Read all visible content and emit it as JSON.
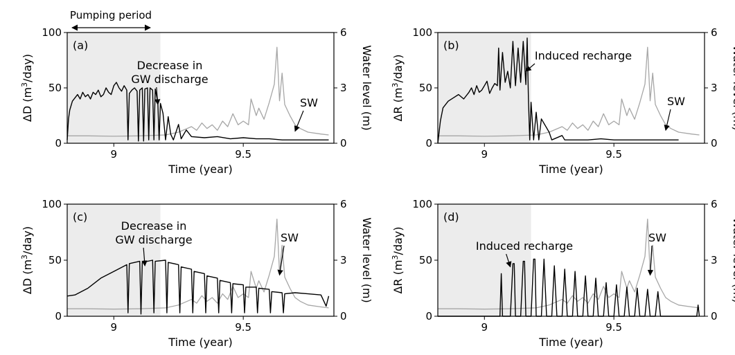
{
  "header": {
    "pumping_label": "Pumping period"
  },
  "colors": {
    "shade": "#ececec",
    "response_line": "#000000",
    "surface_water_line": "#a6a6a6",
    "frame": "#000000"
  },
  "chart_data": [
    {
      "type": "line",
      "panel_label": "(a)",
      "xlabel": "Time (year)",
      "ylabel": "ΔD (m³/day)",
      "ylabel_prefix": "ΔD (m",
      "ylabel_sup": "3",
      "ylabel_suffix": "/day)",
      "ylabel_right": "Water level (m)",
      "xlim": [
        8.82,
        9.85
      ],
      "ylim": [
        0,
        100
      ],
      "ylim_right": [
        0,
        6
      ],
      "xticks": [
        9,
        9.5
      ],
      "xtick_labels": [
        "9",
        "9.5"
      ],
      "yticks": [
        0,
        50,
        100
      ],
      "ytick_labels": [
        "0",
        "50",
        "100"
      ],
      "yticks_right": [
        0,
        3,
        6
      ],
      "ytick_labels_right": [
        "0",
        "3",
        "6"
      ],
      "shaded_period": [
        8.82,
        9.18
      ],
      "annotations": [
        {
          "lines": [
            "Decrease in",
            "GW discharge"
          ],
          "arrow_to": [
            9.17,
            35
          ]
        },
        {
          "lines": [
            "SW"
          ],
          "arrow_to": [
            9.7,
            0.65
          ]
        }
      ],
      "series": [
        {
          "axis": "left",
          "x": [
            8.82,
            8.825,
            8.83,
            8.84,
            8.85,
            8.86,
            8.87,
            8.88,
            8.89,
            8.9,
            8.91,
            8.92,
            8.93,
            8.94,
            8.95,
            8.96,
            8.97,
            8.98,
            8.99,
            9.0,
            9.01,
            9.02,
            9.03,
            9.04,
            9.05,
            9.055,
            9.06,
            9.07,
            9.08,
            9.09,
            9.095,
            9.1,
            9.11,
            9.115,
            9.12,
            9.13,
            9.135,
            9.14,
            9.15,
            9.155,
            9.16,
            9.17,
            9.175,
            9.18,
            9.19,
            9.2,
            9.21,
            9.22,
            9.23,
            9.25,
            9.26,
            9.28,
            9.3,
            9.35,
            9.4,
            9.45,
            9.5,
            9.55,
            9.6,
            9.65,
            9.7,
            9.75,
            9.8,
            9.83
          ],
          "values": [
            3,
            22,
            30,
            38,
            41,
            44,
            40,
            46,
            42,
            44,
            40,
            46,
            44,
            48,
            42,
            44,
            50,
            46,
            44,
            52,
            55,
            50,
            47,
            52,
            48,
            3,
            45,
            48,
            50,
            47,
            2,
            48,
            50,
            2,
            49,
            50,
            3,
            50,
            48,
            3,
            49,
            37,
            3,
            36,
            27,
            3,
            24,
            8,
            3,
            17,
            4,
            12,
            6,
            5,
            6,
            4,
            5,
            4,
            4,
            3,
            3,
            3,
            3,
            3
          ]
        },
        {
          "axis": "right",
          "x": [
            8.82,
            8.9,
            9.0,
            9.1,
            9.2,
            9.25,
            9.3,
            9.32,
            9.34,
            9.36,
            9.38,
            9.4,
            9.42,
            9.44,
            9.46,
            9.48,
            9.5,
            9.52,
            9.53,
            9.55,
            9.56,
            9.58,
            9.6,
            9.61,
            9.62,
            9.63,
            9.64,
            9.65,
            9.66,
            9.68,
            9.7,
            9.72,
            9.75,
            9.8,
            9.83
          ],
          "values": [
            0.4,
            0.4,
            0.38,
            0.4,
            0.45,
            0.6,
            0.9,
            0.7,
            1.1,
            0.8,
            1.0,
            0.7,
            1.2,
            0.9,
            1.6,
            1.0,
            1.2,
            1.0,
            2.4,
            1.5,
            1.9,
            1.3,
            2.2,
            2.7,
            3.2,
            5.2,
            2.3,
            3.8,
            2.1,
            1.5,
            1.0,
            0.8,
            0.6,
            0.5,
            0.45
          ]
        }
      ]
    },
    {
      "type": "line",
      "panel_label": "(b)",
      "xlabel": "Time (year)",
      "ylabel": "ΔR (m³/day)",
      "ylabel_prefix": "ΔR (m",
      "ylabel_sup": "3",
      "ylabel_suffix": "/day)",
      "ylabel_right": "Water level (m)",
      "xlim": [
        8.82,
        9.85
      ],
      "ylim": [
        0,
        100
      ],
      "ylim_right": [
        0,
        6
      ],
      "xticks": [
        9,
        9.5
      ],
      "xtick_labels": [
        "9",
        "9.5"
      ],
      "yticks": [
        0,
        50,
        100
      ],
      "ytick_labels": [
        "0",
        "50",
        "100"
      ],
      "yticks_right": [
        0,
        3,
        6
      ],
      "ytick_labels_right": [
        "0",
        "3",
        "6"
      ],
      "shaded_period": [
        8.82,
        9.18
      ],
      "annotations": [
        {
          "lines": [
            "Induced recharge"
          ],
          "arrow_to": [
            9.16,
            65
          ]
        },
        {
          "lines": [
            "SW"
          ],
          "arrow_to": [
            9.7,
            0.7
          ]
        }
      ],
      "series": [
        {
          "axis": "left",
          "x": [
            8.82,
            8.83,
            8.84,
            8.86,
            8.88,
            8.9,
            8.92,
            8.94,
            8.95,
            8.96,
            8.97,
            8.98,
            8.99,
            9.0,
            9.01,
            9.02,
            9.03,
            9.04,
            9.05,
            9.055,
            9.06,
            9.07,
            9.08,
            9.09,
            9.1,
            9.11,
            9.12,
            9.13,
            9.14,
            9.15,
            9.16,
            9.165,
            9.17,
            9.175,
            9.18,
            9.19,
            9.2,
            9.21,
            9.22,
            9.25,
            9.26,
            9.3,
            9.31,
            9.4,
            9.45,
            9.5,
            9.55,
            9.6,
            9.65,
            9.7,
            9.75
          ],
          "values": [
            0,
            20,
            32,
            38,
            41,
            44,
            40,
            46,
            50,
            44,
            52,
            46,
            48,
            52,
            56,
            45,
            50,
            54,
            52,
            86,
            48,
            82,
            55,
            65,
            50,
            92,
            52,
            86,
            55,
            92,
            53,
            95,
            40,
            3,
            37,
            3,
            28,
            3,
            22,
            10,
            3,
            7,
            3,
            3,
            4,
            3,
            3,
            3,
            3,
            3,
            3
          ]
        },
        {
          "axis": "right",
          "x": [
            8.82,
            8.9,
            9.0,
            9.1,
            9.2,
            9.25,
            9.3,
            9.32,
            9.34,
            9.36,
            9.38,
            9.4,
            9.42,
            9.44,
            9.46,
            9.48,
            9.5,
            9.52,
            9.53,
            9.55,
            9.56,
            9.58,
            9.6,
            9.61,
            9.62,
            9.63,
            9.64,
            9.65,
            9.66,
            9.68,
            9.7,
            9.72,
            9.75,
            9.8,
            9.83
          ],
          "values": [
            0.4,
            0.4,
            0.38,
            0.4,
            0.45,
            0.6,
            0.9,
            0.7,
            1.1,
            0.8,
            1.0,
            0.7,
            1.2,
            0.9,
            1.6,
            1.0,
            1.2,
            1.0,
            2.4,
            1.5,
            1.9,
            1.3,
            2.2,
            2.7,
            3.2,
            5.2,
            2.3,
            3.8,
            2.1,
            1.5,
            1.0,
            0.8,
            0.6,
            0.5,
            0.45
          ]
        }
      ]
    },
    {
      "type": "line",
      "panel_label": "(c)",
      "xlabel": "Time (year)",
      "ylabel": "ΔD (m³/day)",
      "ylabel_prefix": "ΔD (m",
      "ylabel_sup": "3",
      "ylabel_suffix": "/day)",
      "ylabel_right": "Water level (m)",
      "xlim": [
        8.82,
        9.85
      ],
      "ylim": [
        0,
        100
      ],
      "ylim_right": [
        0,
        6
      ],
      "xticks": [
        9,
        9.5
      ],
      "xtick_labels": [
        "9",
        "9.5"
      ],
      "yticks": [
        0,
        50,
        100
      ],
      "ytick_labels": [
        "0",
        "50",
        "100"
      ],
      "yticks_right": [
        0,
        3,
        6
      ],
      "ytick_labels_right": [
        "0",
        "3",
        "6"
      ],
      "shaded_period": [
        8.82,
        9.18
      ],
      "annotations": [
        {
          "lines": [
            "Decrease in",
            "GW discharge"
          ],
          "arrow_to": [
            9.12,
            45
          ]
        },
        {
          "lines": [
            "SW"
          ],
          "arrow_to": [
            9.64,
            2.2
          ]
        }
      ],
      "series": [
        {
          "axis": "left",
          "x": [
            8.82,
            8.85,
            8.9,
            8.95,
            9.0,
            9.05,
            9.055,
            9.06,
            9.1,
            9.105,
            9.11,
            9.15,
            9.155,
            9.16,
            9.2,
            9.205,
            9.21,
            9.25,
            9.255,
            9.26,
            9.3,
            9.305,
            9.31,
            9.35,
            9.355,
            9.36,
            9.4,
            9.405,
            9.41,
            9.45,
            9.455,
            9.46,
            9.5,
            9.505,
            9.51,
            9.55,
            9.555,
            9.56,
            9.6,
            9.605,
            9.61,
            9.65,
            9.655,
            9.66,
            9.7,
            9.75,
            9.8,
            9.82,
            9.83
          ],
          "values": [
            18,
            19,
            25,
            34,
            40,
            46,
            3,
            47,
            49,
            2,
            48,
            50,
            3,
            49,
            50,
            3,
            48,
            46,
            3,
            44,
            42,
            3,
            40,
            38,
            3,
            36,
            34,
            3,
            32,
            30,
            3,
            29,
            28,
            3,
            26,
            26,
            3,
            25,
            24,
            3,
            22,
            21,
            3,
            20,
            21,
            20,
            19,
            9,
            18
          ]
        },
        {
          "axis": "right",
          "x": [
            8.82,
            8.9,
            9.0,
            9.1,
            9.2,
            9.25,
            9.3,
            9.32,
            9.34,
            9.36,
            9.38,
            9.4,
            9.42,
            9.44,
            9.46,
            9.48,
            9.5,
            9.52,
            9.53,
            9.55,
            9.56,
            9.58,
            9.6,
            9.61,
            9.62,
            9.63,
            9.64,
            9.65,
            9.66,
            9.68,
            9.7,
            9.72,
            9.75,
            9.8,
            9.83
          ],
          "values": [
            0.4,
            0.4,
            0.38,
            0.4,
            0.45,
            0.6,
            0.9,
            0.7,
            1.1,
            0.8,
            1.0,
            0.7,
            1.2,
            0.9,
            1.6,
            1.0,
            1.2,
            1.0,
            2.4,
            1.5,
            1.9,
            1.3,
            2.2,
            2.7,
            3.2,
            5.2,
            2.3,
            3.8,
            2.1,
            1.5,
            1.0,
            0.8,
            0.6,
            0.5,
            0.45
          ]
        }
      ]
    },
    {
      "type": "line",
      "panel_label": "(d)",
      "xlabel": "Time (year)",
      "ylabel": "ΔR (m³/day)",
      "ylabel_prefix": "ΔR (m",
      "ylabel_sup": "3",
      "ylabel_suffix": "/day)",
      "ylabel_right": "Water level (m)",
      "xlim": [
        8.82,
        9.85
      ],
      "ylim": [
        0,
        100
      ],
      "ylim_right": [
        0,
        6
      ],
      "xticks": [
        9,
        9.5
      ],
      "xtick_labels": [
        "9",
        "9.5"
      ],
      "yticks": [
        0,
        50,
        100
      ],
      "ytick_labels": [
        "0",
        "50",
        "100"
      ],
      "yticks_right": [
        0,
        3,
        6
      ],
      "ytick_labels_right": [
        "0",
        "3",
        "6"
      ],
      "shaded_period": [
        8.82,
        9.18
      ],
      "annotations": [
        {
          "lines": [
            "Induced recharge"
          ],
          "arrow_to": [
            9.1,
            44
          ]
        },
        {
          "lines": [
            "SW"
          ],
          "arrow_to": [
            9.64,
            2.2
          ]
        }
      ],
      "series": [
        {
          "axis": "left",
          "x": [
            8.82,
            9.0,
            9.05,
            9.06,
            9.065,
            9.07,
            9.1,
            9.11,
            9.115,
            9.12,
            9.14,
            9.15,
            9.155,
            9.16,
            9.18,
            9.19,
            9.195,
            9.2,
            9.22,
            9.23,
            9.24,
            9.26,
            9.27,
            9.28,
            9.3,
            9.31,
            9.32,
            9.34,
            9.35,
            9.36,
            9.38,
            9.39,
            9.4,
            9.42,
            9.43,
            9.44,
            9.46,
            9.47,
            9.48,
            9.5,
            9.51,
            9.52,
            9.54,
            9.55,
            9.56,
            9.58,
            9.59,
            9.6,
            9.62,
            9.63,
            9.64,
            9.66,
            9.67,
            9.68,
            9.7,
            9.8,
            9.82,
            9.825,
            9.83
          ],
          "values": [
            0,
            0,
            0,
            0,
            38,
            0,
            0,
            47,
            47,
            0,
            0,
            49,
            49,
            0,
            0,
            51,
            51,
            0,
            0,
            51,
            0,
            0,
            45,
            0,
            0,
            42,
            0,
            0,
            40,
            0,
            0,
            36,
            0,
            0,
            34,
            0,
            0,
            30,
            0,
            0,
            28,
            0,
            0,
            26,
            0,
            0,
            25,
            0,
            0,
            24,
            0,
            0,
            22,
            0,
            0,
            0,
            0,
            10,
            0
          ]
        },
        {
          "axis": "right",
          "x": [
            8.82,
            8.9,
            9.0,
            9.1,
            9.2,
            9.25,
            9.3,
            9.32,
            9.34,
            9.36,
            9.38,
            9.4,
            9.42,
            9.44,
            9.46,
            9.48,
            9.5,
            9.52,
            9.53,
            9.55,
            9.56,
            9.58,
            9.6,
            9.61,
            9.62,
            9.63,
            9.64,
            9.65,
            9.66,
            9.68,
            9.7,
            9.72,
            9.75,
            9.8,
            9.83
          ],
          "values": [
            0.4,
            0.4,
            0.38,
            0.4,
            0.45,
            0.6,
            0.9,
            0.7,
            1.1,
            0.8,
            1.0,
            0.7,
            1.2,
            0.9,
            1.6,
            1.0,
            1.2,
            1.0,
            2.4,
            1.5,
            1.9,
            1.3,
            2.2,
            2.7,
            3.2,
            5.2,
            2.3,
            3.8,
            2.1,
            1.5,
            1.0,
            0.8,
            0.6,
            0.5,
            0.45
          ]
        }
      ]
    }
  ]
}
